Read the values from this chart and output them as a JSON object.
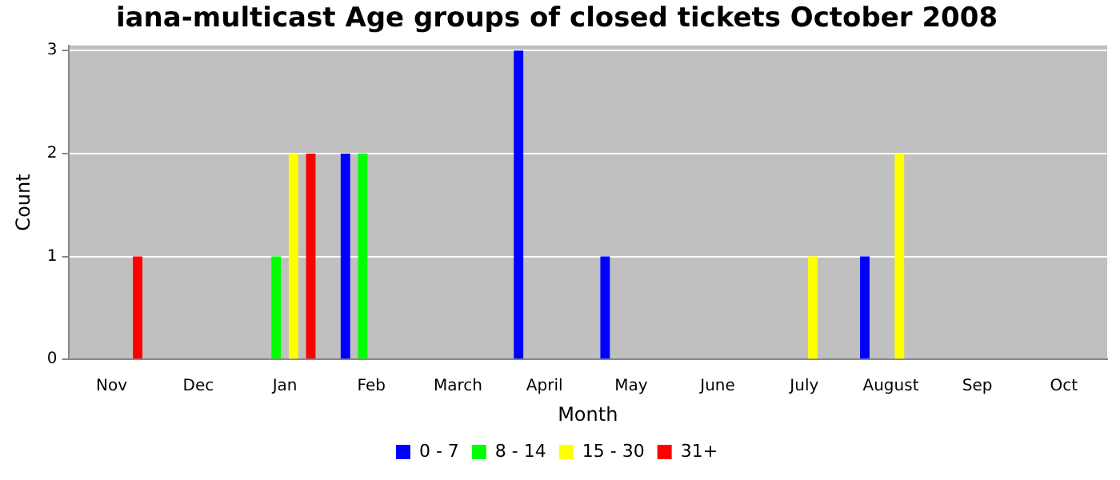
{
  "chart_data": {
    "type": "bar",
    "title": "iana-multicast Age groups of closed tickets October 2008",
    "xlabel": "Month",
    "ylabel": "Count",
    "categories": [
      "Nov",
      "Dec",
      "Jan",
      "Feb",
      "March",
      "April",
      "May",
      "June",
      "July",
      "August",
      "Sep",
      "Oct"
    ],
    "series": [
      {
        "name": "0 - 7",
        "color": "#0000ff",
        "values": [
          0,
          0,
          0,
          2,
          0,
          3,
          1,
          0,
          0,
          1,
          0,
          0
        ]
      },
      {
        "name": "8 - 14",
        "color": "#00ff00",
        "values": [
          0,
          0,
          1,
          2,
          0,
          0,
          0,
          0,
          0,
          0,
          0,
          0
        ]
      },
      {
        "name": "15 - 30",
        "color": "#ffff00",
        "values": [
          0,
          0,
          2,
          0,
          0,
          0,
          0,
          0,
          1,
          2,
          0,
          0
        ]
      },
      {
        "name": "31+",
        "color": "#ff0000",
        "values": [
          1,
          0,
          2,
          0,
          0,
          0,
          0,
          0,
          0,
          0,
          0,
          0
        ]
      }
    ],
    "ylim": [
      0,
      3.05
    ],
    "yticks": [
      0,
      1,
      2,
      3
    ],
    "grid": "y",
    "legend": "bottom"
  }
}
